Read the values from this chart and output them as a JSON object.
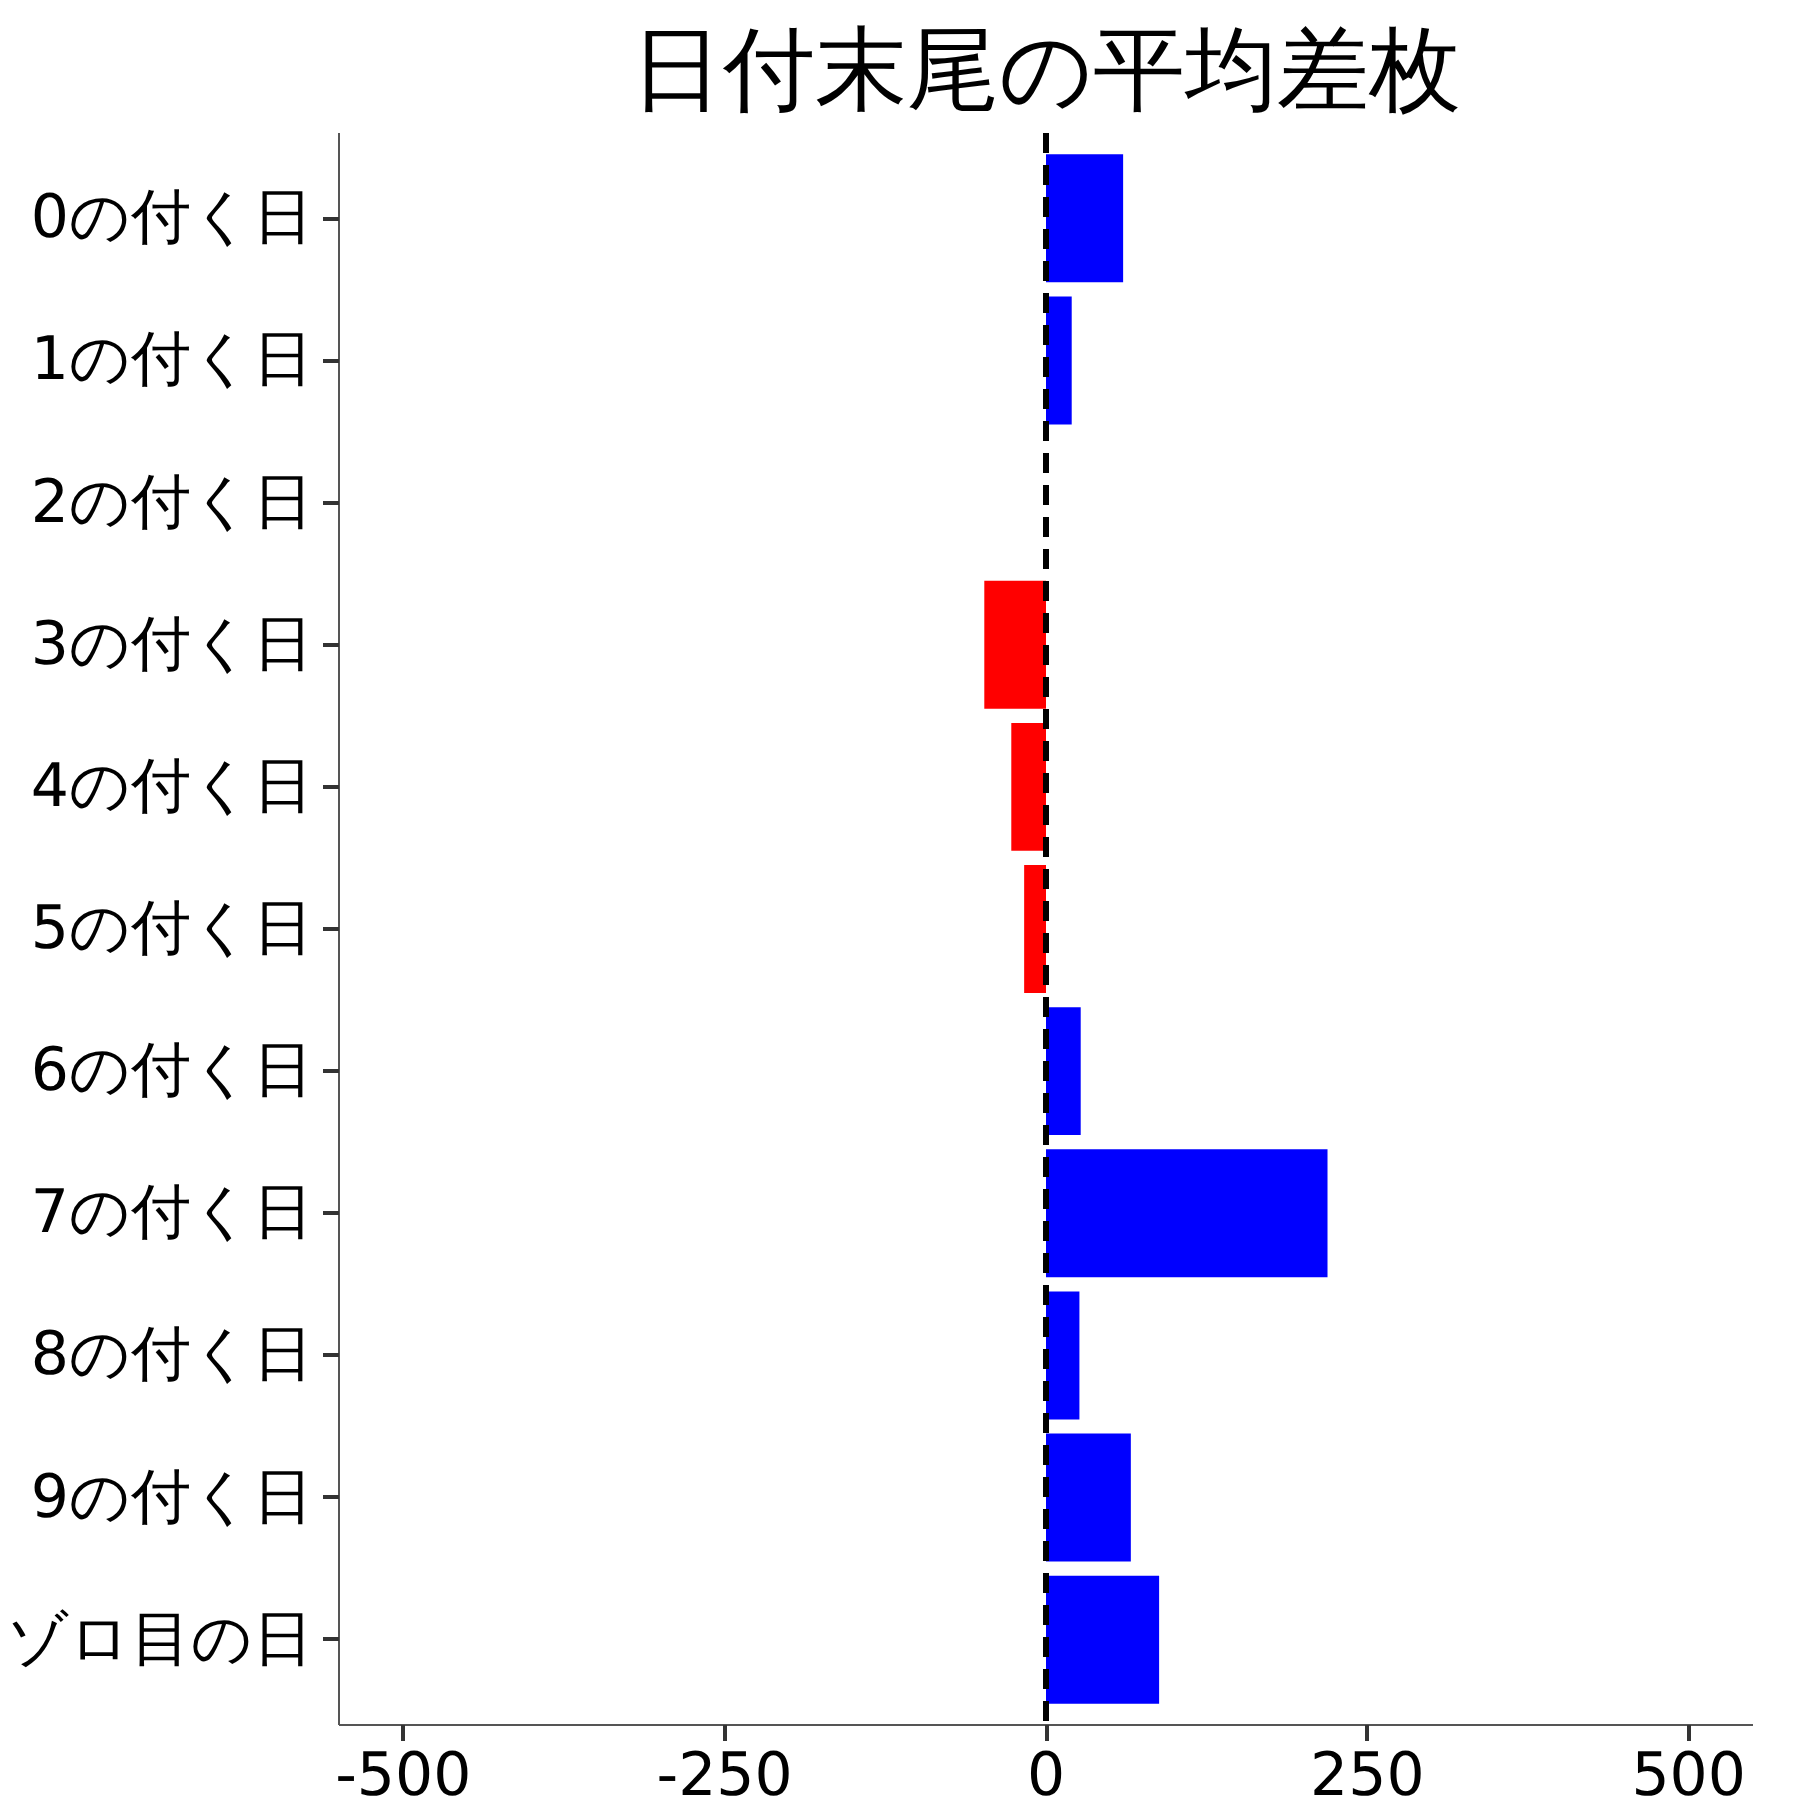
{
  "chart_data": {
    "type": "bar",
    "orientation": "horizontal",
    "title": "日付末尾の平均差枚",
    "categories": [
      "0の付く日",
      "1の付く日",
      "2の付く日",
      "3の付く日",
      "4の付く日",
      "5の付く日",
      "6の付く日",
      "7の付く日",
      "8の付く日",
      "9の付く日",
      "ゾロ目の日"
    ],
    "values": [
      60,
      20,
      0,
      -48,
      -27,
      -17,
      27,
      219,
      26,
      66,
      88
    ],
    "colors": [
      "#0000ff",
      "#0000ff",
      "#0000ff",
      "#ff0000",
      "#ff0000",
      "#ff0000",
      "#0000ff",
      "#0000ff",
      "#0000ff",
      "#0000ff",
      "#0000ff"
    ],
    "xlim": [
      -550,
      550
    ],
    "xticks": [
      -500,
      -250,
      0,
      250,
      500
    ],
    "ref_lines": [
      {
        "axis": "x",
        "value": 0,
        "color": "#000000",
        "line_style": "dashed"
      }
    ],
    "grid": false
  }
}
